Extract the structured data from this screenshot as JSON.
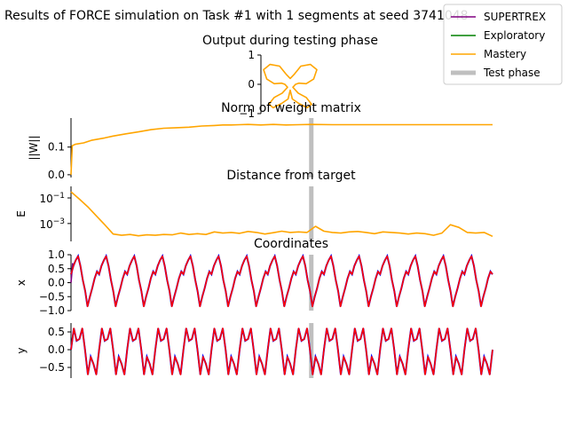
{
  "figure": {
    "suptitle": "Results of FORCE simulation on Task #1 with 1 segments at seed 3741048",
    "legend": {
      "placement": "top-right",
      "entries": [
        {
          "label": "SUPERTREX",
          "color": "#800080"
        },
        {
          "label": "Exploratory",
          "color": "#008000"
        },
        {
          "label": "Mastery",
          "color": "#ffa500"
        },
        {
          "label": "Test phase",
          "color": "#bfbfbf"
        }
      ]
    }
  },
  "chart_data": [
    {
      "type": "line",
      "title": "Output during testing phase",
      "xlabel": "",
      "ylabel": "",
      "ylim": [
        -1,
        1
      ],
      "yticks": [
        "1",
        "0",
        "−1"
      ],
      "series": [
        {
          "name": "Mastery",
          "color": "#ffa500",
          "x": [
            -0.08,
            -0.2,
            -0.38,
            -0.5,
            -0.44,
            -0.3,
            -0.16,
            -0.1,
            -0.05,
            -0.15,
            -0.3,
            -0.4,
            -0.32,
            -0.16,
            -0.04,
            0,
            0.04,
            0.16,
            0.32,
            0.4,
            0.3,
            0.15,
            0.05,
            0.1,
            0.16,
            0.3,
            0.44,
            0.5,
            0.38,
            0.2,
            0.08,
            0,
            -0.08
          ],
          "y": [
            0.35,
            0.62,
            0.68,
            0.5,
            0.18,
            0.02,
            0.04,
            0.0,
            -0.1,
            -0.3,
            -0.45,
            -0.68,
            -0.8,
            -0.65,
            -0.5,
            -0.2,
            -0.5,
            -0.65,
            -0.8,
            -0.68,
            -0.45,
            -0.3,
            -0.1,
            0.0,
            0.04,
            0.02,
            0.18,
            0.5,
            0.68,
            0.62,
            0.35,
            0.2,
            0.35
          ]
        }
      ]
    },
    {
      "type": "line",
      "title": "Norm of weight matrix",
      "xlabel": "",
      "ylabel": "||W||",
      "ylim": [
        -0.01,
        0.205
      ],
      "yticks": [
        "0.0",
        "0.1"
      ],
      "test_phase_x": 0.57,
      "series": [
        {
          "name": "Mastery",
          "color": "#ffa500",
          "x": [
            0.0,
            0.003,
            0.01,
            0.03,
            0.05,
            0.08,
            0.1,
            0.13,
            0.16,
            0.19,
            0.22,
            0.25,
            0.28,
            0.31,
            0.34,
            0.36,
            0.38,
            0.4,
            0.42,
            0.45,
            0.48,
            0.51,
            0.54,
            0.57,
            0.62,
            0.7,
            0.8,
            0.9,
            1.0
          ],
          "y": [
            0.0,
            0.105,
            0.11,
            0.115,
            0.125,
            0.133,
            0.14,
            0.148,
            0.155,
            0.163,
            0.168,
            0.17,
            0.172,
            0.176,
            0.178,
            0.18,
            0.18,
            0.181,
            0.182,
            0.18,
            0.182,
            0.18,
            0.181,
            0.182,
            0.181,
            0.181,
            0.181,
            0.181,
            0.181
          ]
        }
      ]
    },
    {
      "type": "line",
      "title": "Distance from target",
      "xlabel": "",
      "ylabel": "E",
      "yscale": "log",
      "ylim": [
        4e-05,
        0.8
      ],
      "yticks": [
        "10−1",
        "10−3"
      ],
      "test_phase_x": 0.57,
      "series": [
        {
          "name": "Mastery",
          "color": "#ffa500",
          "x": [
            0.0,
            0.02,
            0.04,
            0.06,
            0.08,
            0.1,
            0.12,
            0.14,
            0.16,
            0.18,
            0.2,
            0.22,
            0.24,
            0.26,
            0.28,
            0.3,
            0.32,
            0.34,
            0.36,
            0.38,
            0.4,
            0.42,
            0.44,
            0.46,
            0.48,
            0.5,
            0.52,
            0.54,
            0.56,
            0.58,
            0.6,
            0.62,
            0.64,
            0.66,
            0.68,
            0.7,
            0.72,
            0.74,
            0.76,
            0.78,
            0.8,
            0.82,
            0.84,
            0.86,
            0.88,
            0.9,
            0.92,
            0.94,
            0.96,
            0.98,
            1.0
          ],
          "y": [
            0.3,
            0.08,
            0.02,
            0.004,
            0.0008,
            0.00015,
            0.00012,
            0.00014,
            0.00011,
            0.00013,
            0.00012,
            0.00014,
            0.00013,
            0.00018,
            0.00014,
            0.00016,
            0.00014,
            0.00022,
            0.00018,
            0.0002,
            0.00017,
            0.00024,
            0.0002,
            0.00015,
            0.00019,
            0.00025,
            0.0002,
            0.00022,
            0.0002,
            0.0006,
            0.00025,
            0.0002,
            0.00018,
            0.00022,
            0.00024,
            0.0002,
            0.00016,
            0.00022,
            0.0002,
            0.00018,
            0.00015,
            0.00018,
            0.00016,
            0.00012,
            0.00018,
            0.0008,
            0.0005,
            0.0002,
            0.00018,
            0.0002,
            0.0001
          ]
        }
      ]
    },
    {
      "type": "line",
      "title": "Coordinates",
      "xlabel": "",
      "ylabel": "x",
      "ylim": [
        -1.0,
        1.0
      ],
      "yticks": [
        "1.0",
        "0.5",
        "0.0",
        "−0.5",
        "−1.0"
      ],
      "test_phase_x": 0.57,
      "periods": 15,
      "target_color": "#0000ff",
      "series": [
        {
          "name": "SUPERTREX",
          "color": "#800080",
          "x": [
            0.0,
            0.004
          ],
          "y": [
            0.0,
            0.7
          ]
        },
        {
          "name": "Mastery",
          "color": "#ff0000",
          "x": [
            0.0,
            0.0056,
            0.0112,
            0.0168,
            0.0224,
            0.028,
            0.0336,
            0.0392,
            0.0448,
            0.0504,
            0.056,
            0.0616,
            0.0667
          ],
          "y": [
            0.3,
            0.6,
            0.8,
            0.95,
            0.6,
            0.1,
            -0.3,
            -0.85,
            -0.5,
            -0.2,
            0.15,
            0.4,
            0.3
          ]
        }
      ]
    },
    {
      "type": "line",
      "title": "",
      "xlabel": "",
      "ylabel": "y",
      "ylim": [
        -0.8,
        0.75
      ],
      "yticks": [
        "0.5",
        "0.0",
        "−0.5"
      ],
      "test_phase_x": 0.57,
      "periods": 15,
      "target_color": "#0000ff",
      "series": [
        {
          "name": "Mastery",
          "color": "#ff0000",
          "x": [
            0.0,
            0.0067,
            0.0133,
            0.02,
            0.0267,
            0.0333,
            0.04,
            0.0467,
            0.0533,
            0.06,
            0.0667
          ],
          "y": [
            0.0,
            0.6,
            0.25,
            0.3,
            0.6,
            0.0,
            -0.7,
            -0.2,
            -0.4,
            -0.7,
            0.0
          ]
        }
      ]
    }
  ]
}
